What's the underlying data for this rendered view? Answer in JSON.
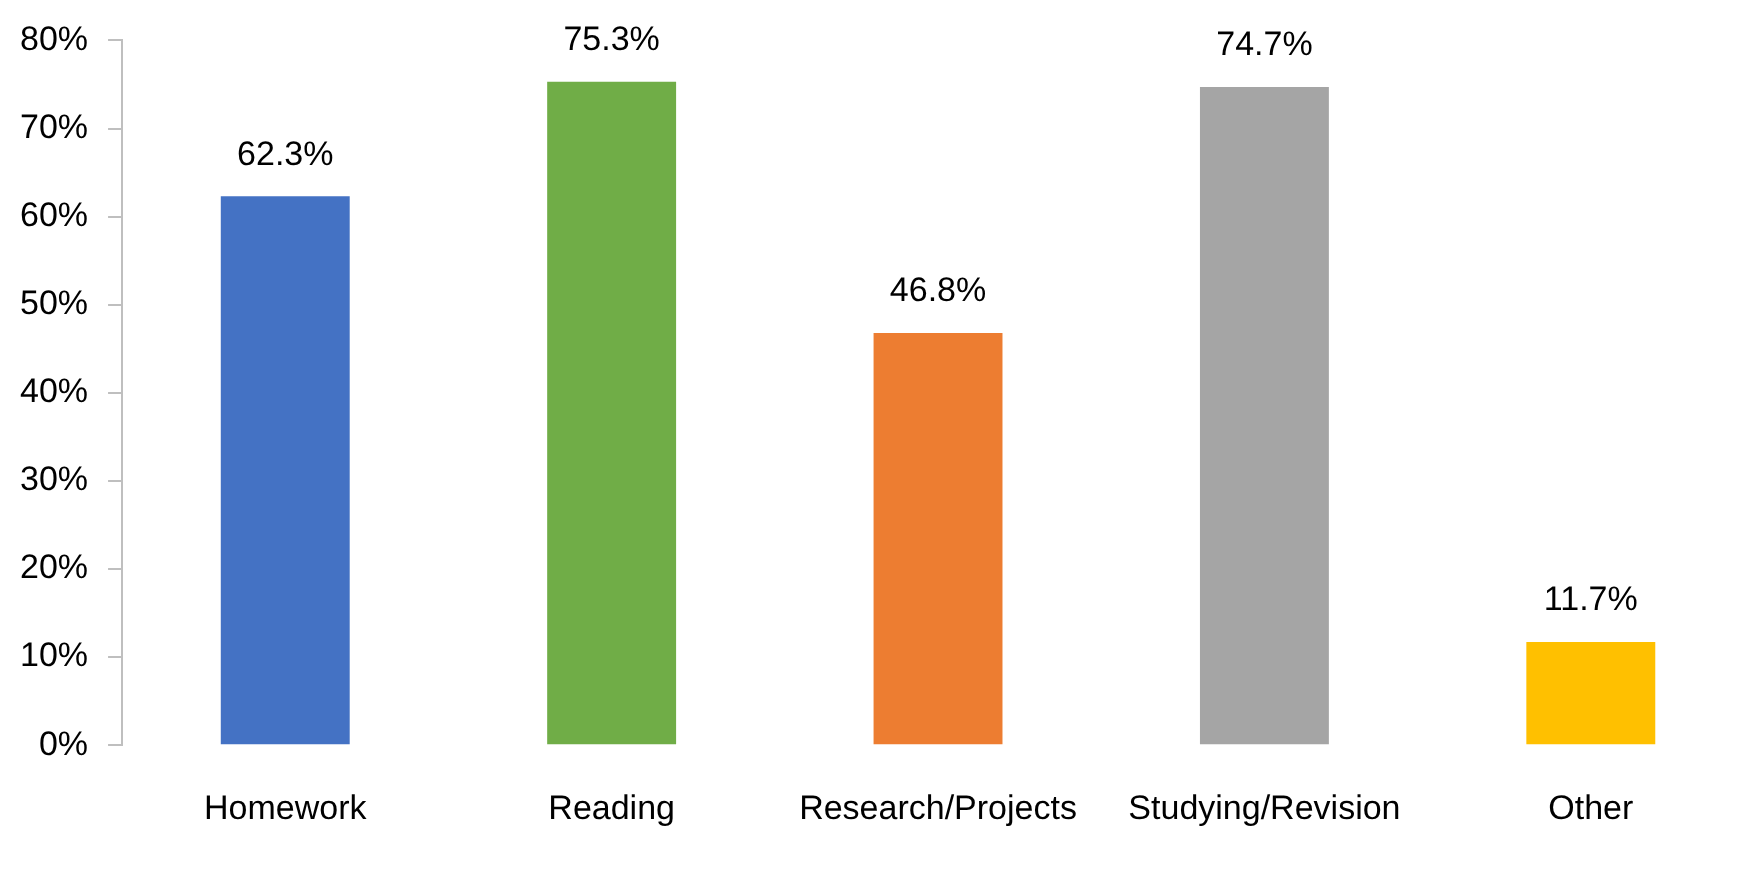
{
  "chart_data": {
    "type": "bar",
    "categories": [
      "Homework",
      "Reading",
      "Research/Projects",
      "Studying/Revision",
      "Other"
    ],
    "values": [
      62.3,
      75.3,
      46.8,
      74.7,
      11.7
    ],
    "value_labels": [
      "62.3%",
      "75.3%",
      "46.8%",
      "74.7%",
      "11.7%"
    ],
    "colors": [
      "#4472c4",
      "#70ad47",
      "#ed7d31",
      "#a5a5a5",
      "#ffc000"
    ],
    "ylim": [
      0,
      80
    ],
    "yticks": [
      {
        "value": 0,
        "label": "0%"
      },
      {
        "value": 10,
        "label": "10%"
      },
      {
        "value": 20,
        "label": "20%"
      },
      {
        "value": 30,
        "label": "30%"
      },
      {
        "value": 40,
        "label": "40%"
      },
      {
        "value": 50,
        "label": "50%"
      },
      {
        "value": 60,
        "label": "60%"
      },
      {
        "value": 70,
        "label": "70%"
      },
      {
        "value": 80,
        "label": "80%"
      }
    ],
    "grid": false,
    "legend": false
  }
}
